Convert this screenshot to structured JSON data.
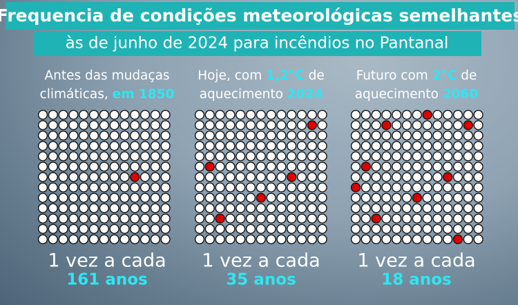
{
  "header": {
    "title_lines": [
      "Frequencia de condições meteorológicas semelhantes",
      "às de junho de 2024 para incêndios no Pantanal"
    ]
  },
  "panels": [
    {
      "heading_lines": [
        [
          {
            "text": "Antes das mudaças"
          }
        ],
        [
          {
            "text": "climáticas, "
          },
          {
            "text": "em 1850",
            "accent": true
          }
        ]
      ],
      "frequency": "1 vez  a cada",
      "period": "161 anos"
    },
    {
      "heading_lines": [
        [
          {
            "text": "Hoje, com "
          },
          {
            "text": "1,2°C",
            "accent": true
          },
          {
            "text": " de"
          }
        ],
        [
          {
            "text": "aquecimento "
          },
          {
            "text": "2024",
            "accent": true
          }
        ]
      ],
      "frequency": "1 vez  a cada",
      "period": "35 anos"
    },
    {
      "heading_lines": [
        [
          {
            "text": "Futuro com "
          },
          {
            "text": "2°C",
            "accent": true
          },
          {
            "text": " de"
          }
        ],
        [
          {
            "text": "aquecimento "
          },
          {
            "text": "2060",
            "accent": true
          }
        ]
      ],
      "frequency": "1 vez  a cada",
      "period": "18 anos"
    }
  ]
}
